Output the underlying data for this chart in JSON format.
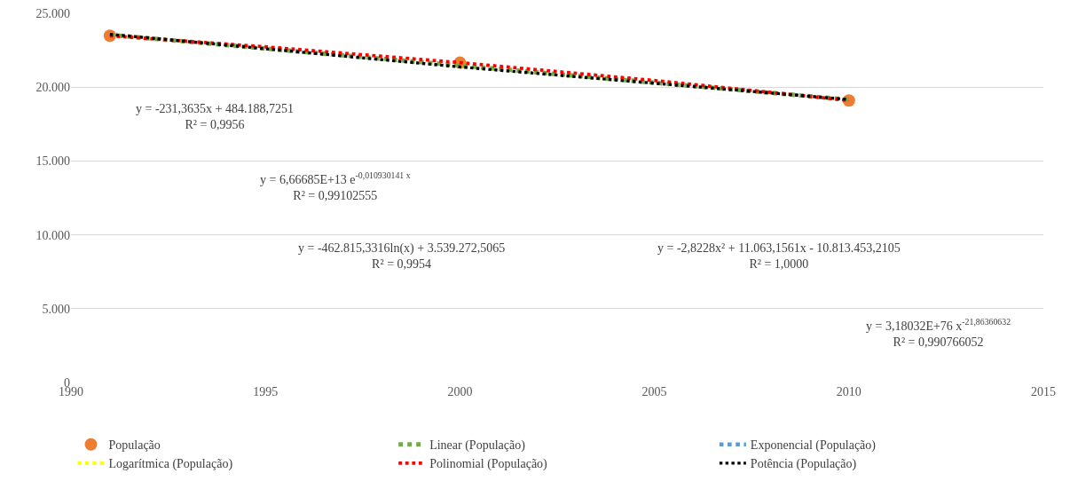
{
  "chart_data": {
    "type": "scatter",
    "xlim": [
      1990,
      2015
    ],
    "xticks": [
      1990,
      1995,
      2000,
      2005,
      2010,
      2015
    ],
    "ylim": [
      0,
      25000
    ],
    "yticks": [
      0,
      {
        "value": 5000,
        "label": "5.000"
      },
      {
        "value": 10000,
        "label": "10.000"
      },
      {
        "value": 15000,
        "label": "15.000"
      },
      {
        "value": 20000,
        "label": "20.000"
      },
      {
        "value": 25000,
        "label": "25.000"
      }
    ],
    "grid": "y",
    "legend": "bottom",
    "series": [
      {
        "name": "População",
        "marker": "circle",
        "color": "#ed7d31",
        "x": [
          1991,
          2000,
          2010
        ],
        "values": [
          23480,
          21660,
          19100
        ]
      },
      {
        "name": "Linear (População)",
        "type": "line",
        "line_style": "dotted",
        "color": "#70ad47",
        "x": [
          1991,
          2010
        ],
        "values": [
          23540,
          19150
        ]
      },
      {
        "name": "Exponencial (População)",
        "type": "line",
        "line_style": "dotted",
        "color": "#5b9bd5"
      },
      {
        "name": "Logarítmica (População)",
        "type": "line",
        "line_style": "dotted",
        "color": "#ffff00"
      },
      {
        "name": "Polinomial (População)",
        "type": "line",
        "line_style": "dotted",
        "color": "#ff0000",
        "x": [
          1991,
          1995,
          2000,
          2005,
          2010
        ],
        "values": [
          23480,
          22730,
          21660,
          20450,
          19100
        ]
      },
      {
        "name": "Potência (População)",
        "type": "line",
        "line_style": "dotted",
        "color": "#000000",
        "x": [
          1991,
          2000,
          2010
        ],
        "values": [
          23580,
          21370,
          19160
        ]
      }
    ],
    "annotations": [
      "y = -231,3635x + 484.188,7251\nR² = 0,9956",
      "y = 6,66685E+13 e$^{-0,010930141 x}$\nR² = 0,99102555",
      "y = -462.815,3316ln(x) + 3.539.272,5065\nR² = 0,9954",
      "y = -2,8228x² + 11.063,1561x - 10.813.453,2105\nR² = 1,0000",
      "y = 3,18032E+76 x$^{-21,86360632}$\nR² = 0,990766052"
    ]
  }
}
